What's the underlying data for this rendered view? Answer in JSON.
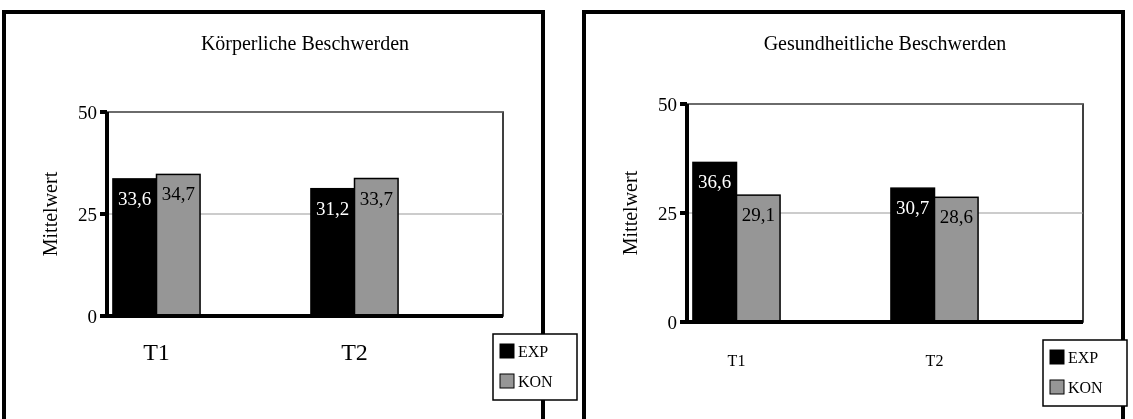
{
  "chart_data": [
    {
      "type": "bar",
      "title": "Körperliche Beschwerden",
      "ylabel": "Mittelwert",
      "categories": [
        "T1",
        "T2"
      ],
      "series": [
        {
          "name": "EXP",
          "color": "#000000",
          "values": [
            33.6,
            31.2
          ],
          "value_labels": [
            "33,6",
            "31,2"
          ]
        },
        {
          "name": "KON",
          "color": "#969696",
          "values": [
            34.7,
            33.7
          ],
          "value_labels": [
            "34,7",
            "33,7"
          ]
        }
      ],
      "ylim": [
        0,
        50
      ],
      "yticks": [
        0,
        25,
        50
      ],
      "grid": "y",
      "legend": "bottom right"
    },
    {
      "type": "bar",
      "title": "Gesundheitliche Beschwerden",
      "ylabel": "Mittelwert",
      "categories": [
        "T1",
        "T2"
      ],
      "series": [
        {
          "name": "EXP",
          "color": "#000000",
          "values": [
            36.6,
            30.7
          ],
          "value_labels": [
            "36,6",
            "30,7"
          ]
        },
        {
          "name": "KON",
          "color": "#969696",
          "values": [
            29.1,
            28.6
          ],
          "value_labels": [
            "29,1",
            "28,6"
          ]
        }
      ],
      "ylim": [
        0,
        50
      ],
      "yticks": [
        0,
        25,
        50
      ],
      "grid": "y",
      "legend": "bottom right"
    }
  ]
}
